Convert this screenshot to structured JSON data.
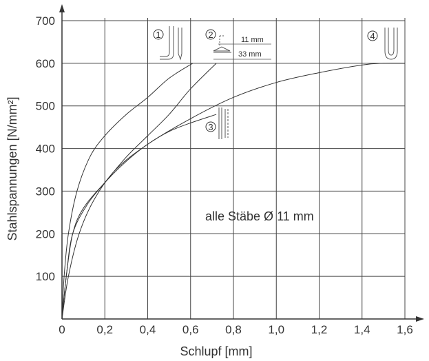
{
  "chart_data": {
    "type": "line",
    "xlabel": "Schlupf [mm]",
    "ylabel": "Stahlspannungen [N/mm²]",
    "xlim": [
      0,
      1.6
    ],
    "ylim": [
      0,
      700
    ],
    "x_ticks": [
      "0",
      "0,2",
      "0,4",
      "0,6",
      "0,8",
      "1,0",
      "1,2",
      "1,4",
      "1,6"
    ],
    "y_ticks": [
      "100",
      "200",
      "300",
      "400",
      "500",
      "600",
      "700"
    ],
    "grid": true,
    "annotation": "alle Stäbe Ø 11 mm",
    "dim_labels": [
      "11 mm",
      "33 mm"
    ],
    "series": [
      {
        "name": "1",
        "points": [
          [
            0,
            0
          ],
          [
            0.01,
            100
          ],
          [
            0.03,
            200
          ],
          [
            0.07,
            300
          ],
          [
            0.13,
            380
          ],
          [
            0.2,
            430
          ],
          [
            0.3,
            480
          ],
          [
            0.4,
            520
          ],
          [
            0.5,
            565
          ],
          [
            0.61,
            600
          ]
        ]
      },
      {
        "name": "2",
        "points": [
          [
            0,
            0
          ],
          [
            0.02,
            100
          ],
          [
            0.05,
            200
          ],
          [
            0.12,
            270
          ],
          [
            0.2,
            320
          ],
          [
            0.3,
            380
          ],
          [
            0.4,
            430
          ],
          [
            0.5,
            480
          ],
          [
            0.6,
            540
          ],
          [
            0.72,
            600
          ]
        ]
      },
      {
        "name": "3",
        "points": [
          [
            0,
            0
          ],
          [
            0.02,
            100
          ],
          [
            0.05,
            200
          ],
          [
            0.1,
            260
          ],
          [
            0.2,
            320
          ],
          [
            0.3,
            370
          ],
          [
            0.4,
            410
          ],
          [
            0.5,
            440
          ],
          [
            0.6,
            460
          ],
          [
            0.72,
            480
          ]
        ]
      },
      {
        "name": "4",
        "points": [
          [
            0,
            0
          ],
          [
            0.03,
            100
          ],
          [
            0.08,
            200
          ],
          [
            0.15,
            280
          ],
          [
            0.25,
            350
          ],
          [
            0.4,
            410
          ],
          [
            0.6,
            470
          ],
          [
            0.8,
            520
          ],
          [
            1.0,
            555
          ],
          [
            1.2,
            578
          ],
          [
            1.4,
            596
          ],
          [
            1.5,
            600
          ],
          [
            1.6,
            600
          ]
        ]
      }
    ]
  }
}
